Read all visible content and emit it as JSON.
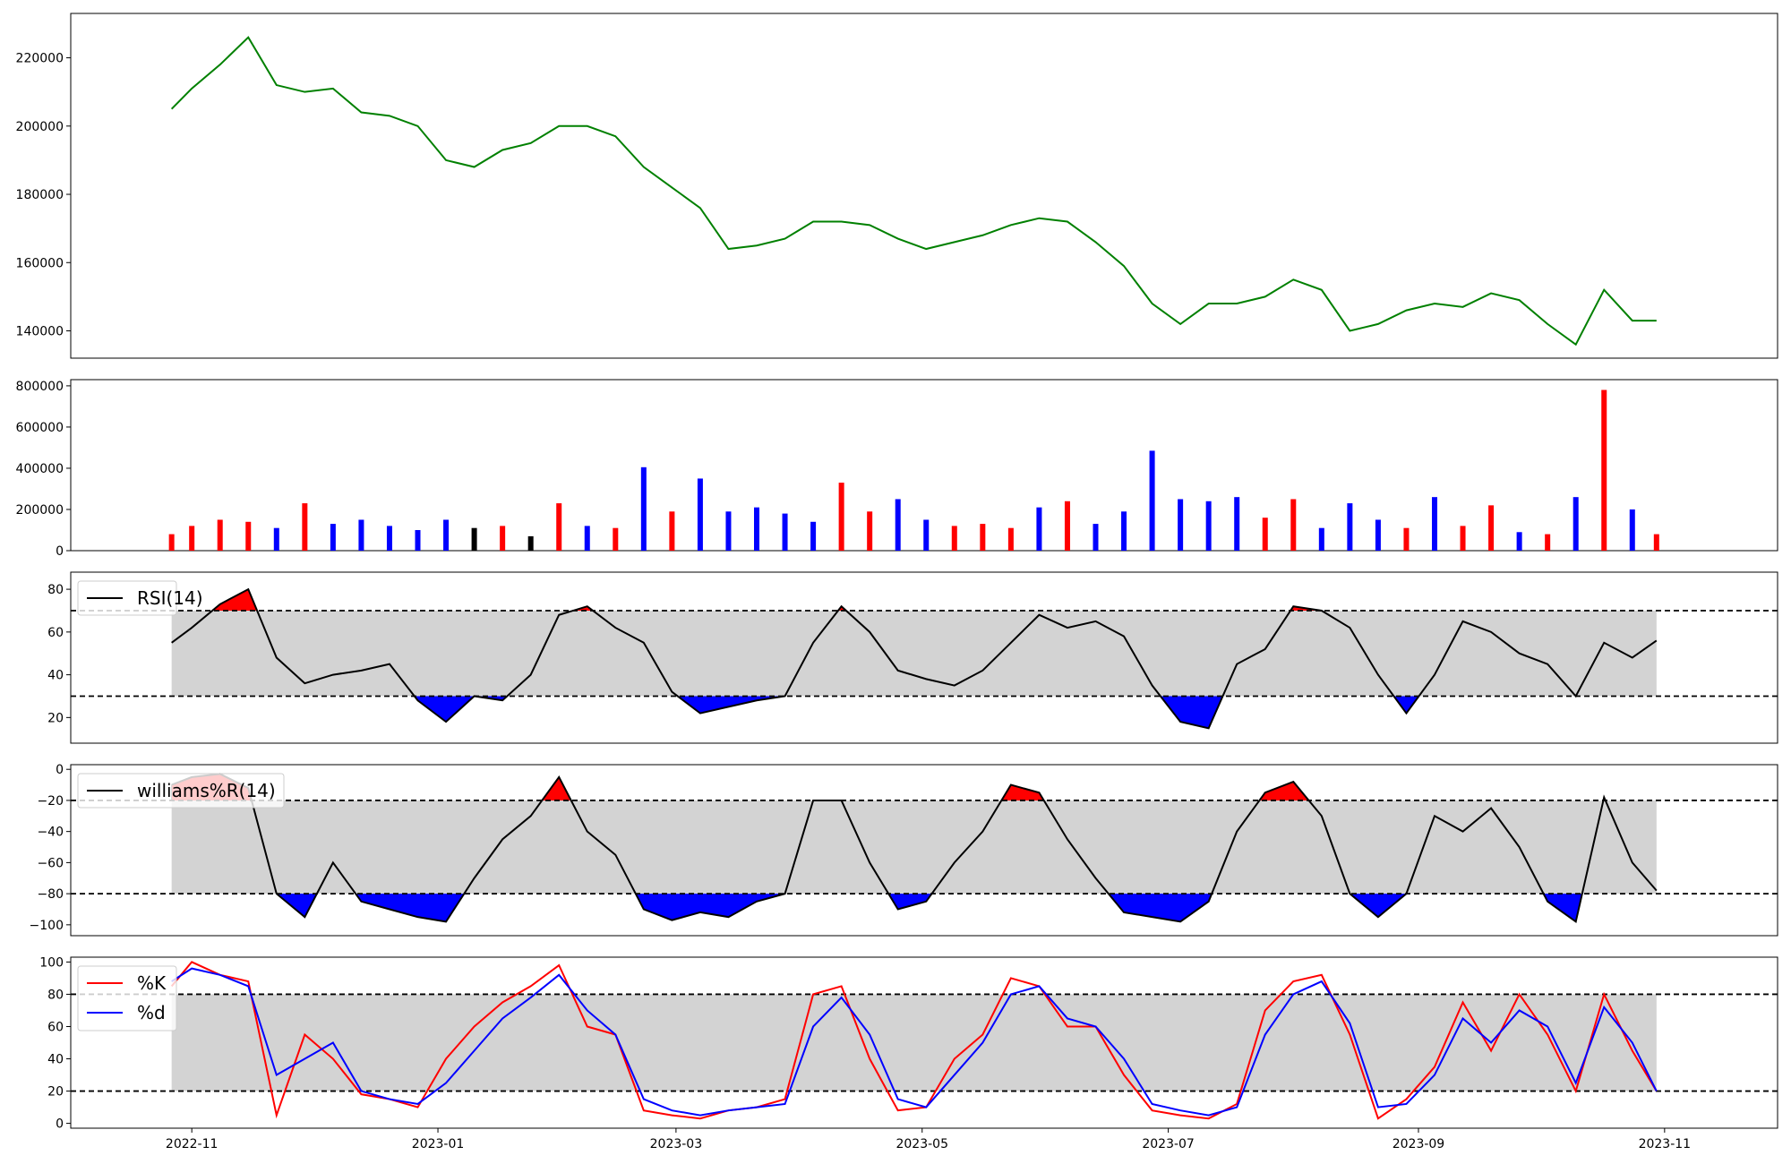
{
  "chart_data": [
    {
      "type": "line",
      "panel": "price",
      "color": "#008000",
      "y_ticks": [
        "140000",
        "160000",
        "180000",
        "200000",
        "220000"
      ],
      "ylim": [
        132000,
        233000
      ],
      "x": [
        "2022-10-27",
        "2022-11-01",
        "2022-11-08",
        "2022-11-15",
        "2022-11-22",
        "2022-11-29",
        "2022-12-06",
        "2022-12-13",
        "2022-12-20",
        "2022-12-27",
        "2023-01-03",
        "2023-01-10",
        "2023-01-17",
        "2023-01-24",
        "2023-01-31",
        "2023-02-07",
        "2023-02-14",
        "2023-02-21",
        "2023-02-28",
        "2023-03-07",
        "2023-03-14",
        "2023-03-21",
        "2023-03-28",
        "2023-04-04",
        "2023-04-11",
        "2023-04-18",
        "2023-04-25",
        "2023-05-02",
        "2023-05-09",
        "2023-05-16",
        "2023-05-23",
        "2023-05-30",
        "2023-06-06",
        "2023-06-13",
        "2023-06-20",
        "2023-06-27",
        "2023-07-04",
        "2023-07-11",
        "2023-07-18",
        "2023-07-25",
        "2023-08-01",
        "2023-08-08",
        "2023-08-15",
        "2023-08-22",
        "2023-08-29",
        "2023-09-05",
        "2023-09-12",
        "2023-09-19",
        "2023-09-26",
        "2023-10-03",
        "2023-10-10",
        "2023-10-17",
        "2023-10-24",
        "2023-10-30"
      ],
      "values": [
        205000,
        211000,
        218000,
        226000,
        212000,
        210000,
        211000,
        204000,
        203000,
        200000,
        190000,
        188000,
        193000,
        195000,
        200000,
        200000,
        197000,
        188000,
        182000,
        176000,
        164000,
        165000,
        167000,
        172000,
        172000,
        171000,
        167000,
        164000,
        166000,
        168000,
        171000,
        173000,
        172000,
        166000,
        159000,
        148000,
        142000,
        148000,
        148000,
        150000,
        155000,
        152000,
        140000,
        142000,
        146000,
        148000,
        147000,
        151000,
        149000,
        142000,
        136000,
        152000,
        143000,
        143000
      ]
    },
    {
      "type": "bar",
      "panel": "volume",
      "y_ticks": [
        "0",
        "200000",
        "400000",
        "600000",
        "800000"
      ],
      "ylim": [
        0,
        830000
      ],
      "colors": {
        "up": "#ff0000",
        "down": "#0000ff",
        "flat": "#000000"
      },
      "x": [
        "2022-10-27",
        "2022-11-01",
        "2022-11-08",
        "2022-11-15",
        "2022-11-22",
        "2022-11-29",
        "2022-12-06",
        "2022-12-13",
        "2022-12-20",
        "2022-12-27",
        "2023-01-03",
        "2023-01-10",
        "2023-01-17",
        "2023-01-24",
        "2023-01-31",
        "2023-02-07",
        "2023-02-14",
        "2023-02-21",
        "2023-02-28",
        "2023-03-07",
        "2023-03-14",
        "2023-03-21",
        "2023-03-28",
        "2023-04-04",
        "2023-04-11",
        "2023-04-18",
        "2023-04-25",
        "2023-05-02",
        "2023-05-09",
        "2023-05-16",
        "2023-05-23",
        "2023-05-30",
        "2023-06-06",
        "2023-06-13",
        "2023-06-20",
        "2023-06-27",
        "2023-07-04",
        "2023-07-11",
        "2023-07-18",
        "2023-07-25",
        "2023-08-01",
        "2023-08-08",
        "2023-08-15",
        "2023-08-22",
        "2023-08-29",
        "2023-09-05",
        "2023-09-12",
        "2023-09-19",
        "2023-09-26",
        "2023-10-03",
        "2023-10-10",
        "2023-10-17",
        "2023-10-24",
        "2023-10-30"
      ],
      "values": [
        80000,
        120000,
        150000,
        140000,
        110000,
        230000,
        130000,
        150000,
        120000,
        100000,
        150000,
        110000,
        120000,
        70000,
        230000,
        120000,
        110000,
        405000,
        190000,
        350000,
        190000,
        210000,
        180000,
        140000,
        330000,
        190000,
        250000,
        150000,
        120000,
        130000,
        110000,
        210000,
        240000,
        130000,
        190000,
        485000,
        250000,
        240000,
        260000,
        160000,
        250000,
        110000,
        230000,
        150000,
        110000,
        260000,
        120000,
        220000,
        90000,
        80000,
        260000,
        780000,
        200000,
        80000
      ],
      "kinds": [
        "up",
        "up",
        "up",
        "up",
        "down",
        "up",
        "down",
        "down",
        "down",
        "down",
        "down",
        "flat",
        "up",
        "flat",
        "up",
        "down",
        "up",
        "down",
        "up",
        "down",
        "down",
        "down",
        "down",
        "down",
        "up",
        "up",
        "down",
        "down",
        "up",
        "up",
        "up",
        "down",
        "up",
        "down",
        "down",
        "down",
        "down",
        "down",
        "down",
        "up",
        "up",
        "down",
        "down",
        "down",
        "up",
        "down",
        "up",
        "up",
        "down",
        "up",
        "down",
        "up",
        "down",
        "up"
      ]
    },
    {
      "type": "line",
      "panel": "rsi",
      "legend": "RSI(14)",
      "y_ticks": [
        "20",
        "40",
        "60",
        "80"
      ],
      "ylim": [
        8,
        88
      ],
      "upper": 70,
      "lower": 30,
      "x": [
        "2022-10-27",
        "2022-11-01",
        "2022-11-08",
        "2022-11-15",
        "2022-11-22",
        "2022-11-29",
        "2022-12-06",
        "2022-12-13",
        "2022-12-20",
        "2022-12-27",
        "2023-01-03",
        "2023-01-10",
        "2023-01-17",
        "2023-01-24",
        "2023-01-31",
        "2023-02-07",
        "2023-02-14",
        "2023-02-21",
        "2023-02-28",
        "2023-03-07",
        "2023-03-14",
        "2023-03-21",
        "2023-03-28",
        "2023-04-04",
        "2023-04-11",
        "2023-04-18",
        "2023-04-25",
        "2023-05-02",
        "2023-05-09",
        "2023-05-16",
        "2023-05-23",
        "2023-05-30",
        "2023-06-06",
        "2023-06-13",
        "2023-06-20",
        "2023-06-27",
        "2023-07-04",
        "2023-07-11",
        "2023-07-18",
        "2023-07-25",
        "2023-08-01",
        "2023-08-08",
        "2023-08-15",
        "2023-08-22",
        "2023-08-29",
        "2023-09-05",
        "2023-09-12",
        "2023-09-19",
        "2023-09-26",
        "2023-10-03",
        "2023-10-10",
        "2023-10-17",
        "2023-10-24",
        "2023-10-30"
      ],
      "values": [
        55,
        62,
        73,
        80,
        48,
        36,
        40,
        42,
        45,
        28,
        18,
        30,
        28,
        40,
        68,
        72,
        62,
        55,
        32,
        22,
        25,
        28,
        30,
        55,
        72,
        60,
        42,
        38,
        35,
        42,
        55,
        68,
        62,
        65,
        58,
        35,
        18,
        15,
        45,
        52,
        72,
        70,
        62,
        40,
        22,
        40,
        65,
        60,
        50,
        45,
        30,
        55,
        48,
        56
      ]
    },
    {
      "type": "line",
      "panel": "williams",
      "legend": "williams%R(14)",
      "y_ticks": [
        "0",
        "−20",
        "−40",
        "−60",
        "−80",
        "−100"
      ],
      "ylim": [
        -107,
        3
      ],
      "upper": -20,
      "lower": -80,
      "x": [
        "2022-10-27",
        "2022-11-01",
        "2022-11-08",
        "2022-11-15",
        "2022-11-22",
        "2022-11-29",
        "2022-12-06",
        "2022-12-13",
        "2022-12-20",
        "2022-12-27",
        "2023-01-03",
        "2023-01-10",
        "2023-01-17",
        "2023-01-24",
        "2023-01-31",
        "2023-02-07",
        "2023-02-14",
        "2023-02-21",
        "2023-02-28",
        "2023-03-07",
        "2023-03-14",
        "2023-03-21",
        "2023-03-28",
        "2023-04-04",
        "2023-04-11",
        "2023-04-18",
        "2023-04-25",
        "2023-05-02",
        "2023-05-09",
        "2023-05-16",
        "2023-05-23",
        "2023-05-30",
        "2023-06-06",
        "2023-06-13",
        "2023-06-20",
        "2023-06-27",
        "2023-07-04",
        "2023-07-11",
        "2023-07-18",
        "2023-07-25",
        "2023-08-01",
        "2023-08-08",
        "2023-08-15",
        "2023-08-22",
        "2023-08-29",
        "2023-09-05",
        "2023-09-12",
        "2023-09-19",
        "2023-09-26",
        "2023-10-03",
        "2023-10-10",
        "2023-10-17",
        "2023-10-24",
        "2023-10-30"
      ],
      "values": [
        -10,
        -5,
        -3,
        -12,
        -80,
        -95,
        -60,
        -85,
        -90,
        -95,
        -98,
        -70,
        -45,
        -30,
        -5,
        -40,
        -55,
        -90,
        -97,
        -92,
        -95,
        -85,
        -80,
        -20,
        -20,
        -60,
        -90,
        -85,
        -60,
        -40,
        -10,
        -15,
        -45,
        -70,
        -92,
        -95,
        -98,
        -85,
        -40,
        -15,
        -8,
        -30,
        -80,
        -95,
        -80,
        -30,
        -40,
        -25,
        -50,
        -85,
        -98,
        -18,
        -60,
        -78
      ]
    },
    {
      "type": "line",
      "panel": "stochastic",
      "y_ticks": [
        "0",
        "20",
        "40",
        "60",
        "80",
        "100"
      ],
      "ylim": [
        -3,
        103
      ],
      "upper": 80,
      "lower": 20,
      "series": [
        {
          "name": "%K",
          "color": "#ff0000",
          "values": [
            85,
            100,
            92,
            88,
            5,
            55,
            40,
            18,
            15,
            10,
            40,
            60,
            75,
            85,
            98,
            60,
            55,
            8,
            5,
            3,
            8,
            10,
            15,
            80,
            85,
            40,
            8,
            10,
            40,
            55,
            90,
            85,
            60,
            60,
            30,
            8,
            5,
            3,
            12,
            70,
            88,
            92,
            55,
            3,
            15,
            35,
            75,
            45,
            80,
            55,
            20,
            80,
            45,
            20
          ]
        },
        {
          "name": "%d",
          "color": "#0000ff",
          "values": [
            88,
            96,
            92,
            85,
            30,
            40,
            50,
            20,
            15,
            12,
            25,
            45,
            65,
            78,
            92,
            70,
            55,
            15,
            8,
            5,
            8,
            10,
            12,
            60,
            78,
            55,
            15,
            10,
            30,
            50,
            80,
            85,
            65,
            60,
            40,
            12,
            8,
            5,
            10,
            55,
            80,
            88,
            62,
            10,
            12,
            30,
            65,
            50,
            70,
            60,
            25,
            72,
            50,
            20
          ]
        }
      ],
      "x": [
        "2022-10-27",
        "2022-11-01",
        "2022-11-08",
        "2022-11-15",
        "2022-11-22",
        "2022-11-29",
        "2022-12-06",
        "2022-12-13",
        "2022-12-20",
        "2022-12-27",
        "2023-01-03",
        "2023-01-10",
        "2023-01-17",
        "2023-01-24",
        "2023-01-31",
        "2023-02-07",
        "2023-02-14",
        "2023-02-21",
        "2023-02-28",
        "2023-03-07",
        "2023-03-14",
        "2023-03-21",
        "2023-03-28",
        "2023-04-04",
        "2023-04-11",
        "2023-04-18",
        "2023-04-25",
        "2023-05-02",
        "2023-05-09",
        "2023-05-16",
        "2023-05-23",
        "2023-05-30",
        "2023-06-06",
        "2023-06-13",
        "2023-06-20",
        "2023-06-27",
        "2023-07-04",
        "2023-07-11",
        "2023-07-18",
        "2023-07-25",
        "2023-08-01",
        "2023-08-08",
        "2023-08-15",
        "2023-08-22",
        "2023-08-29",
        "2023-09-05",
        "2023-09-12",
        "2023-09-19",
        "2023-09-26",
        "2023-10-03",
        "2023-10-10",
        "2023-10-17",
        "2023-10-24",
        "2023-10-30"
      ]
    }
  ],
  "x_axis": {
    "tick_labels": [
      "2022-11",
      "2023-01",
      "2023-03",
      "2023-05",
      "2023-07",
      "2023-09",
      "2023-11"
    ],
    "tick_dates": [
      "2022-11-01",
      "2023-01-01",
      "2023-03-01",
      "2023-05-01",
      "2023-07-01",
      "2023-09-01",
      "2023-11-01"
    ],
    "xlim": [
      "2022-10-02",
      "2023-11-29"
    ]
  },
  "style": {
    "band_fill": "#d3d3d3",
    "over_fill": "#ff0000",
    "under_fill": "#0000ff"
  }
}
